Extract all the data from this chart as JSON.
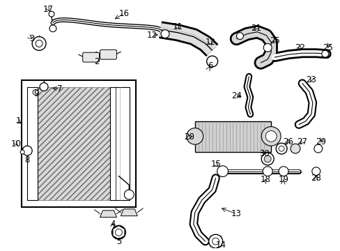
{
  "bg_color": "#ffffff",
  "fig_width": 4.89,
  "fig_height": 3.6,
  "dpi": 100,
  "label_fontsize": 8.5,
  "label_fontsize_sm": 7.5
}
